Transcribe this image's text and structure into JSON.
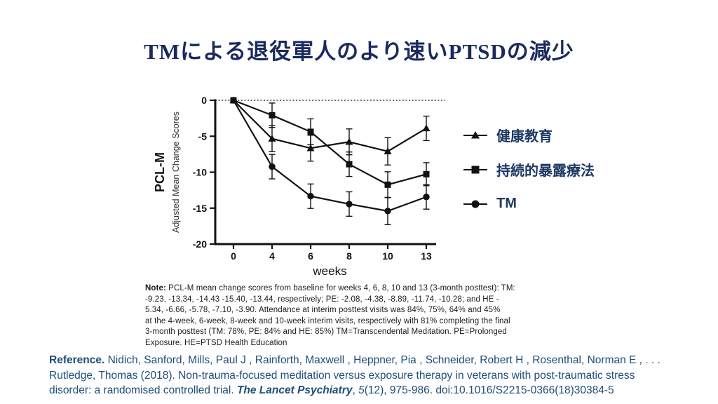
{
  "title": "TMによる退役軍人のより速いPTSDの減少",
  "colors": {
    "title_text": "#1b2a5e",
    "legend_text": "#1f3864",
    "reference_text": "#1f4e7a",
    "chart_ink": "#111111",
    "background": "#ffffff"
  },
  "chart_data": {
    "type": "line",
    "x": [
      0,
      4,
      6,
      8,
      10,
      13
    ],
    "xlabel": "weeks",
    "ylabel_primary": "PCL-M",
    "ylabel_secondary": "Adjusted Mean Change Scores",
    "ylim": [
      -20,
      0
    ],
    "yticks": [
      0,
      -5,
      -10,
      -15,
      -20
    ],
    "grid": false,
    "baseline_dotted_at": 0,
    "legend_position": "right",
    "series": [
      {
        "name": "健康教育",
        "marker": "triangle",
        "values": [
          0,
          -5.34,
          -6.66,
          -5.78,
          -7.1,
          -3.9
        ],
        "errors": [
          0,
          1.8,
          1.8,
          1.8,
          1.9,
          1.7
        ]
      },
      {
        "name": "持続的暴露療法",
        "marker": "square",
        "values": [
          0,
          -2.08,
          -4.38,
          -8.89,
          -11.74,
          -10.28
        ],
        "errors": [
          0,
          1.7,
          1.8,
          1.7,
          1.8,
          1.6
        ]
      },
      {
        "name": "TM",
        "marker": "circle",
        "values": [
          0,
          -9.23,
          -13.34,
          -14.43,
          -15.4,
          -13.44
        ],
        "errors": [
          0,
          1.7,
          1.7,
          1.7,
          1.9,
          1.7
        ]
      }
    ]
  },
  "legend": {
    "items": [
      {
        "label": "健康教育",
        "marker": "triangle"
      },
      {
        "label": "持続的暴露療法",
        "marker": "square"
      },
      {
        "label": "TM",
        "marker": "circle"
      }
    ]
  },
  "note": {
    "lines": [
      [
        {
          "t": "Note:",
          "b": 1
        },
        {
          "t": " PCL-M mean change scores from baseline for weeks 4, 6, 8, 10 and 13 (3-month posttest):  TM:"
        }
      ],
      [
        {
          "t": "-9.23, -13.34, -14.43 -15.40, -13.44, respectively;  PE: -2.08, -4.38, -8.89, -11.74, -10.28;  and HE -"
        }
      ],
      [
        {
          "t": "5.34, -6.66, -5.78, -7.10, -3.90.  Attendance at interim posttest visits was 84%, 75%, 64%  and 45%"
        }
      ],
      [
        {
          "t": "at the 4-week, 6-week, 8-week and 10-week interim visits, respectively  with 81% completing the final"
        }
      ],
      [
        {
          "t": "3-month posttest (TM: 78%, PE: 84% and HE: 85%)   TM=Transcendental Meditation.  PE=Prolonged"
        }
      ],
      [
        {
          "t": "Exposure.  HE=PTSD Health Education"
        }
      ]
    ]
  },
  "reference": {
    "lines": [
      [
        {
          "t": "Reference.",
          "b": 1
        },
        {
          "t": " Nidich, Sanford, Mills, Paul J , Rainforth, Maxwell , Heppner, Pia , Schneider, Robert H , Rosenthal, Norman E , . . ."
        }
      ],
      [
        {
          "t": "Rutledge, Thomas (2018). Non-trauma-focused meditation versus exposure therapy in veterans with post-traumatic stress"
        }
      ],
      [
        {
          "t": "disorder: a randomised controlled trial. "
        },
        {
          "t": "The Lancet Psychiatry",
          "b": 1,
          "i": 1
        },
        {
          "t": ", "
        },
        {
          "t": "5",
          "i": 1
        },
        {
          "t": "(12), 975-986. doi:10.1016/S2215-0366(18)30384-5"
        }
      ]
    ]
  }
}
